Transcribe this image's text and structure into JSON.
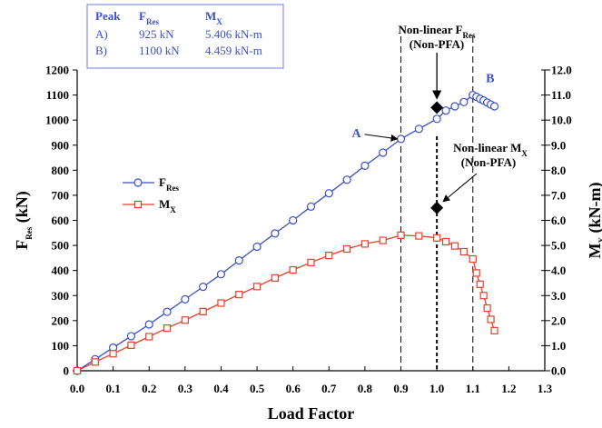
{
  "chart_data": {
    "type": "line",
    "xlabel": "Load Factor",
    "ylabel_left": "F",
    "ylabel_left_sub": "Res",
    "ylabel_left_unit": " (kN)",
    "ylabel_right": "M",
    "ylabel_right_sub": "X",
    "ylabel_right_unit": " (kN-m)",
    "xlim": [
      0.0,
      1.3
    ],
    "ylim_left": [
      0,
      1200
    ],
    "ylim_right": [
      0.0,
      12.0
    ],
    "xticks": [
      "0.0",
      "0.1",
      "0.2",
      "0.3",
      "0.4",
      "0.5",
      "0.6",
      "0.7",
      "0.8",
      "0.9",
      "1.0",
      "1.1",
      "1.2",
      "1.3"
    ],
    "yticks_left": [
      "0",
      "100",
      "200",
      "300",
      "400",
      "500",
      "600",
      "700",
      "800",
      "900",
      "1000",
      "1100",
      "1200"
    ],
    "yticks_right": [
      "0.0",
      "1.0",
      "2.0",
      "3.0",
      "4.0",
      "5.0",
      "6.0",
      "7.0",
      "8.0",
      "9.0",
      "10.0",
      "11.0",
      "12.0"
    ],
    "grid": false,
    "legend_position": "left-middle",
    "series": [
      {
        "name": "F",
        "name_sub": "Res",
        "axis": "left",
        "marker": "circle",
        "color": "#3b4fc8",
        "x": [
          0,
          0.05,
          0.1,
          0.15,
          0.2,
          0.25,
          0.3,
          0.35,
          0.4,
          0.45,
          0.5,
          0.55,
          0.6,
          0.65,
          0.7,
          0.75,
          0.8,
          0.85,
          0.9,
          0.95,
          1.0,
          1.025,
          1.05,
          1.075,
          1.1,
          1.11,
          1.12,
          1.13,
          1.14,
          1.15,
          1.16
        ],
        "y": [
          0,
          46,
          92,
          138,
          185,
          235,
          285,
          335,
          385,
          440,
          495,
          548,
          600,
          655,
          708,
          762,
          818,
          870,
          925,
          965,
          1005,
          1038,
          1055,
          1072,
          1100,
          1093,
          1085,
          1078,
          1070,
          1062,
          1055
        ]
      },
      {
        "name": "M",
        "name_sub": "X",
        "axis": "right",
        "marker": "square",
        "color": "#e8402a",
        "x": [
          0,
          0.05,
          0.1,
          0.15,
          0.2,
          0.25,
          0.3,
          0.35,
          0.4,
          0.45,
          0.5,
          0.55,
          0.6,
          0.65,
          0.7,
          0.75,
          0.8,
          0.85,
          0.9,
          0.95,
          1.0,
          1.025,
          1.05,
          1.075,
          1.1,
          1.11,
          1.12,
          1.13,
          1.14,
          1.15,
          1.16
        ],
        "y": [
          0,
          0.35,
          0.68,
          1.02,
          1.36,
          1.7,
          2.02,
          2.36,
          2.7,
          3.04,
          3.36,
          3.7,
          4.02,
          4.32,
          4.6,
          4.86,
          5.06,
          5.2,
          5.406,
          5.38,
          5.3,
          5.15,
          4.98,
          4.75,
          4.459,
          3.9,
          3.45,
          3.0,
          2.5,
          2.05,
          1.6
        ]
      }
    ],
    "reference_lines_x": [
      0.9,
      1.0,
      1.1
    ],
    "nonlinear_points": [
      {
        "axis": "left",
        "x": 1.0,
        "y": 1050
      },
      {
        "axis": "right",
        "x": 1.0,
        "y": 6.5
      }
    ],
    "labels": {
      "A": {
        "text": "A",
        "x": 0.9,
        "y": 925
      },
      "B": {
        "text": "B",
        "x": 1.1,
        "y": 1100
      },
      "nl_fres": {
        "line1": "Non-linear F",
        "line1_sub": "Res",
        "line2": "(Non-PFA)"
      },
      "nl_mx": {
        "line1": "Non-linear M",
        "line1_sub": "X",
        "line2": "(Non-PFA)"
      }
    },
    "peak_table": {
      "headers": [
        "Peak",
        "F",
        "M"
      ],
      "header_subs": [
        "",
        "Res",
        "X"
      ],
      "rows": [
        [
          "A)",
          "925 kN",
          "5.406 kN-m"
        ],
        [
          "B)",
          "1100 kN",
          "4.459 kN-m"
        ]
      ]
    }
  }
}
